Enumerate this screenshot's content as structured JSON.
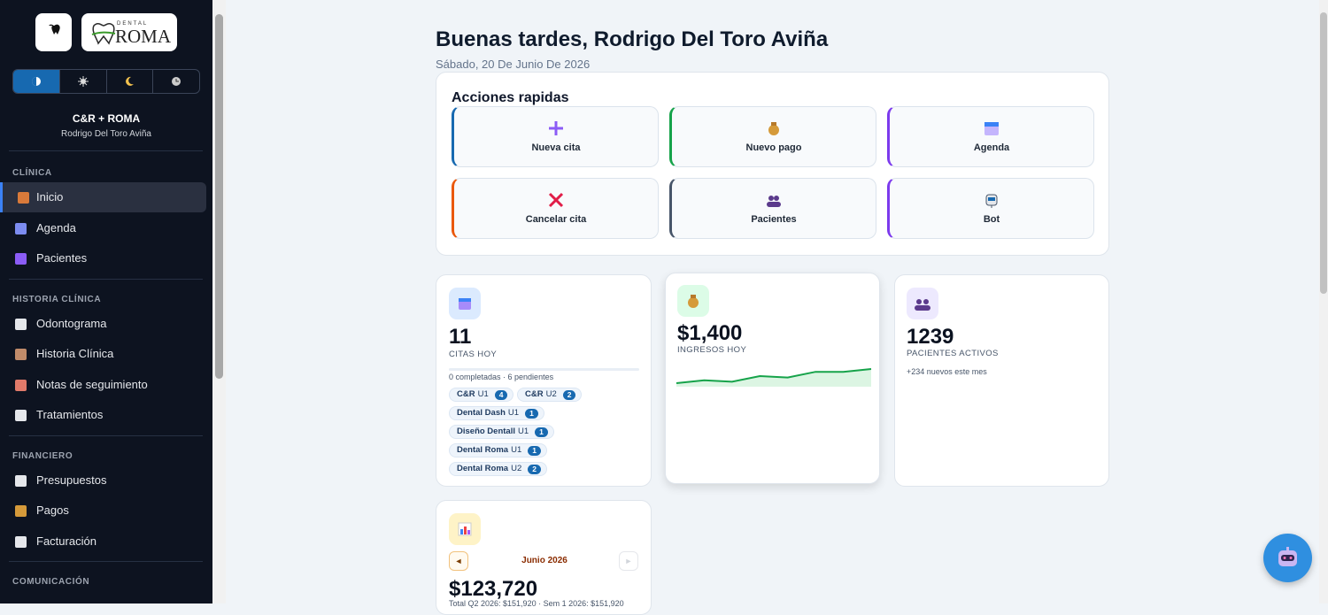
{
  "sidebar": {
    "logo": {
      "tag": "DENTAL",
      "brand": "ROMA"
    },
    "clinic": "C&R + ROMA",
    "user": "Rodrigo Del Toro Aviña",
    "sections": [
      {
        "title": "CLÍNICA",
        "items": [
          "Inicio",
          "Agenda",
          "Pacientes"
        ]
      },
      {
        "title": "HISTORIA CLÍNICA",
        "items": [
          "Odontograma",
          "Historia Clínica",
          "Notas de seguimiento",
          "Tratamientos"
        ]
      },
      {
        "title": "FINANCIERO",
        "items": [
          "Presupuestos",
          "Pagos",
          "Facturación"
        ]
      },
      {
        "title": "COMUNICACIÓN"
      }
    ]
  },
  "header": {
    "greeting": "Buenas tardes, Rodrigo Del Toro Aviña",
    "date": "Sábado, 20 De Junio De 2026"
  },
  "quick_actions": {
    "title": "Acciones rapidas",
    "buttons": [
      "Nueva cita",
      "Nuevo pago",
      "Agenda",
      "Cancelar cita",
      "Pacientes",
      "Bot"
    ]
  },
  "stats": {
    "appointments": {
      "value": 11,
      "label": "CITAS HOY",
      "summary": "0 completadas · 6 pendientes",
      "chips": [
        {
          "clinic": "C&R",
          "unit": "U1",
          "count": 4
        },
        {
          "clinic": "C&R",
          "unit": "U2",
          "count": 2
        },
        {
          "clinic": "Dental Dash",
          "unit": "U1",
          "count": 1
        },
        {
          "clinic": "Diseño Dentall",
          "unit": "U1",
          "count": 1
        },
        {
          "clinic": "Dental Roma",
          "unit": "U1",
          "count": 1
        },
        {
          "clinic": "Dental Roma",
          "unit": "U2",
          "count": 2
        }
      ]
    },
    "income": {
      "value": "$1,400",
      "label": "INGRESOS HOY",
      "trend": [
        3,
        5,
        4,
        8,
        7,
        11,
        11,
        13
      ]
    },
    "patients": {
      "value": 1239,
      "label": "PACIENTES ACTIVOS",
      "note": "+234 nuevos este mes"
    },
    "revenue": {
      "prev": "◄",
      "month": "Junio 2026",
      "next": "►",
      "value": "$123,720",
      "footnote": "Total Q2 2026: $151,920 · Sem 1 2026: $151,920"
    }
  }
}
